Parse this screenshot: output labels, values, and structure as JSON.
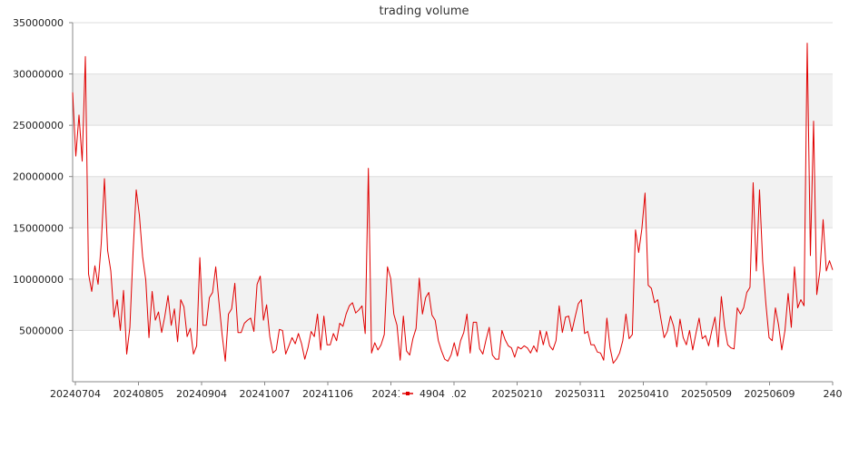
{
  "chart_data": {
    "type": "line",
    "title": "trading volume",
    "xlabel": "",
    "ylabel": "",
    "y_tick_labels": [
      "5000000",
      "10000000",
      "15000000",
      "20000000",
      "25000000",
      "30000000",
      "35000000"
    ],
    "x_tick_labels": [
      "20240704",
      "20240805",
      "20240904",
      "20241007",
      "20241106",
      "202412",
      "0102",
      "20250210",
      "20250311",
      "20250410",
      "20250509",
      "20250609",
      "240"
    ],
    "ylim": [
      0,
      35000000
    ],
    "grid": "horizontal, alternating bands",
    "legend_position": "bottom-center",
    "colors": {
      "series": "#e00000",
      "band": "#f2f2f2",
      "grid": "#dddddd"
    },
    "series": [
      {
        "name": "4904",
        "values": [
          28200000,
          22000000,
          26000000,
          21500000,
          31700000,
          10500000,
          8800000,
          11300000,
          9500000,
          13500000,
          19800000,
          12800000,
          10800000,
          6300000,
          8000000,
          5000000,
          8900000,
          2700000,
          5300000,
          12600000,
          18700000,
          16200000,
          12200000,
          9900000,
          4300000,
          8800000,
          6000000,
          6800000,
          4800000,
          6400000,
          8400000,
          5500000,
          7100000,
          3900000,
          8000000,
          7300000,
          4400000,
          5200000,
          2700000,
          3500000,
          12100000,
          5500000,
          5500000,
          8200000,
          8700000,
          11200000,
          7800000,
          4600000,
          2000000,
          6600000,
          7100000,
          9600000,
          4800000,
          4800000,
          5700000,
          6000000,
          6200000,
          4900000,
          9500000,
          10300000,
          6000000,
          7500000,
          4400000,
          2800000,
          3100000,
          5100000,
          5000000,
          2700000,
          3500000,
          4300000,
          3700000,
          4700000,
          3700000,
          2200000,
          3300000,
          4900000,
          4400000,
          6600000,
          3100000,
          6400000,
          3600000,
          3600000,
          4700000,
          4000000,
          5700000,
          5400000,
          6600000,
          7400000,
          7700000,
          6700000,
          7000000,
          7400000,
          4700000,
          20800000,
          2800000,
          3800000,
          3100000,
          3600000,
          4600000,
          11200000,
          10100000,
          6600000,
          5500000,
          2100000,
          6400000,
          3000000,
          2600000,
          4200000,
          5200000,
          10100000,
          6600000,
          8200000,
          8700000,
          6500000,
          6000000,
          4000000,
          3000000,
          2200000,
          2000000,
          2600000,
          3800000,
          2500000,
          4000000,
          4800000,
          6600000,
          2800000,
          5800000,
          5800000,
          3200000,
          2700000,
          4100000,
          5300000,
          2600000,
          2200000,
          2200000,
          5000000,
          4100000,
          3500000,
          3300000,
          2400000,
          3400000,
          3200000,
          3500000,
          3300000,
          2800000,
          3500000,
          2900000,
          5000000,
          3600000,
          4900000,
          3500000,
          3100000,
          4000000,
          7400000,
          4800000,
          6300000,
          6400000,
          4900000,
          6300000,
          7600000,
          8000000,
          4700000,
          4900000,
          3600000,
          3600000,
          2900000,
          2800000,
          2100000,
          6200000,
          3300000,
          1800000,
          2200000,
          2800000,
          4000000,
          6600000,
          4200000,
          4600000,
          14800000,
          12600000,
          14900000,
          18400000,
          9400000,
          9100000,
          7700000,
          8000000,
          6100000,
          4300000,
          4900000,
          6400000,
          5400000,
          3400000,
          6100000,
          4300000,
          3600000,
          5000000,
          3100000,
          4700000,
          6200000,
          4200000,
          4500000,
          3500000,
          5000000,
          6300000,
          3400000,
          8300000,
          5400000,
          3600000,
          3300000,
          3200000,
          7200000,
          6600000,
          7200000,
          8700000,
          9200000,
          19400000,
          10800000,
          18700000,
          11700000,
          7600000,
          4300000,
          4000000,
          7200000,
          5500000,
          3100000,
          5000000,
          8600000,
          5300000,
          11200000,
          7200000,
          8000000,
          7400000,
          33000000,
          12300000,
          25400000,
          8500000,
          10800000,
          15800000,
          10800000,
          11800000,
          10900000
        ]
      }
    ]
  }
}
